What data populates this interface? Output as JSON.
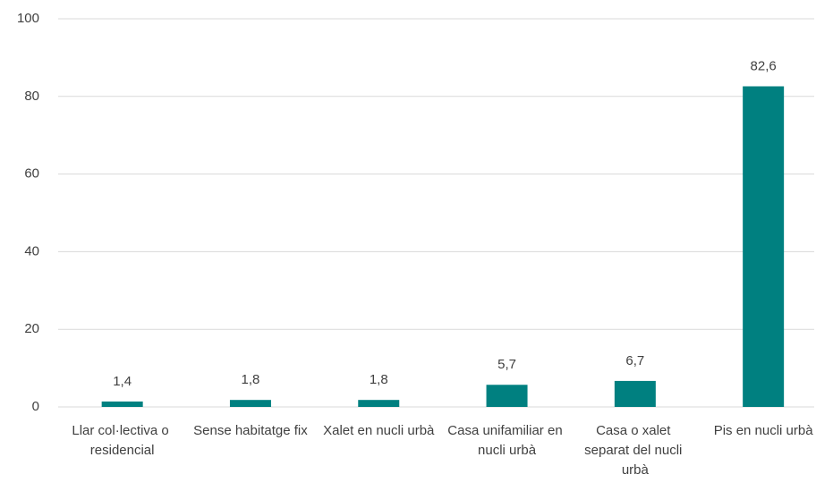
{
  "chart_data": {
    "type": "bar",
    "categories": [
      "Llar col·lectiva o residencial",
      "Sense habitatge fix",
      "Xalet en nucli urbà",
      "Casa unifamiliar en nucli urbà",
      "Casa o xalet separat del nucli urbà",
      "Pis en nucli urbà"
    ],
    "values": [
      1.4,
      1.8,
      1.8,
      5.7,
      6.7,
      82.6
    ],
    "value_labels": [
      "1,4",
      "1,8",
      "1,8",
      "5,7",
      "6,7",
      "82,6"
    ],
    "color": "#008080",
    "ylim": [
      0,
      100
    ],
    "yticks": [
      0,
      20,
      40,
      60,
      80,
      100
    ],
    "grid": true
  }
}
